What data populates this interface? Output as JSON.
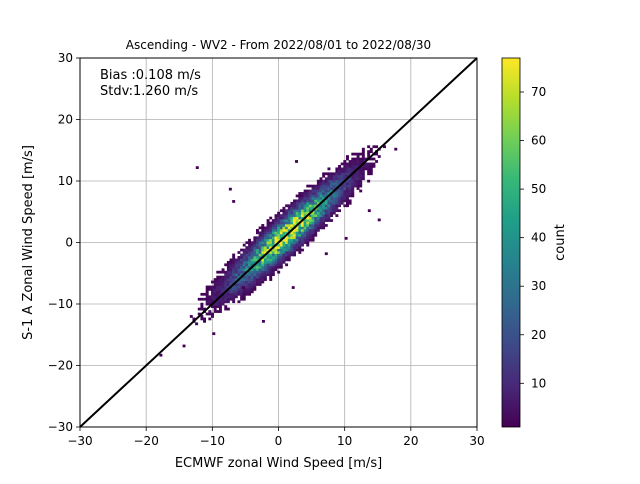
{
  "chart_data": {
    "type": "heatmap",
    "title": "Ascending - WV2 - From 2022/08/01 to 2022/08/30",
    "xlabel": "ECMWF zonal Wind Speed [m/s]",
    "ylabel": "S-1 A Zonal Wind Speed [m/s]",
    "xlim": [
      -30,
      30
    ],
    "ylim": [
      -30,
      30
    ],
    "xticks": [
      "−30",
      "−20",
      "−10",
      "0",
      "10",
      "20",
      "30"
    ],
    "yticks": [
      "−30",
      "−20",
      "−10",
      "0",
      "10",
      "20",
      "30"
    ],
    "xtick_values": [
      -30,
      -20,
      -10,
      0,
      10,
      20,
      30
    ],
    "ytick_values": [
      -30,
      -20,
      -10,
      0,
      10,
      20,
      30
    ],
    "grid": true,
    "annotations": [
      "Bias :0.108 m/s",
      "Stdv:1.260 m/s"
    ],
    "reference_line": {
      "x": [
        -30,
        30
      ],
      "y": [
        -30,
        30
      ]
    },
    "bins_per_unit": 2.5,
    "density_model": {
      "along_line_center": 2,
      "along_line_spread": 6.5,
      "across_line_spread": 1.25,
      "bias": 0.108,
      "peak_count": 77
    },
    "outliers": [
      {
        "x": -12.5,
        "y": 12
      },
      {
        "x": 2.5,
        "y": 13
      },
      {
        "x": -7.5,
        "y": 8.5
      },
      {
        "x": -7,
        "y": 6.5
      },
      {
        "x": 10,
        "y": 0.5
      },
      {
        "x": 13.5,
        "y": 5
      },
      {
        "x": 15,
        "y": 3.5
      },
      {
        "x": 17.5,
        "y": 15
      },
      {
        "x": 7,
        "y": -2
      },
      {
        "x": 2,
        "y": -7.5
      },
      {
        "x": -2.5,
        "y": -13
      },
      {
        "x": -5.5,
        "y": -7.5
      },
      {
        "x": -18,
        "y": -18.5
      },
      {
        "x": -14.5,
        "y": -17
      },
      {
        "x": -10,
        "y": -15
      }
    ],
    "colorbar": {
      "label": "count",
      "min": 1,
      "max": 77,
      "ticks": [
        "10",
        "20",
        "30",
        "40",
        "50",
        "60",
        "70"
      ],
      "tick_values": [
        10,
        20,
        30,
        40,
        50,
        60,
        70
      ],
      "colormap": "viridis"
    }
  },
  "colors": {
    "grid": "#b0b0b0",
    "line": "#000000",
    "viridis": [
      "#440154",
      "#482878",
      "#3e4989",
      "#31688e",
      "#26828e",
      "#1f9e89",
      "#35b779",
      "#6ece58",
      "#b5de2b",
      "#fde725"
    ]
  }
}
